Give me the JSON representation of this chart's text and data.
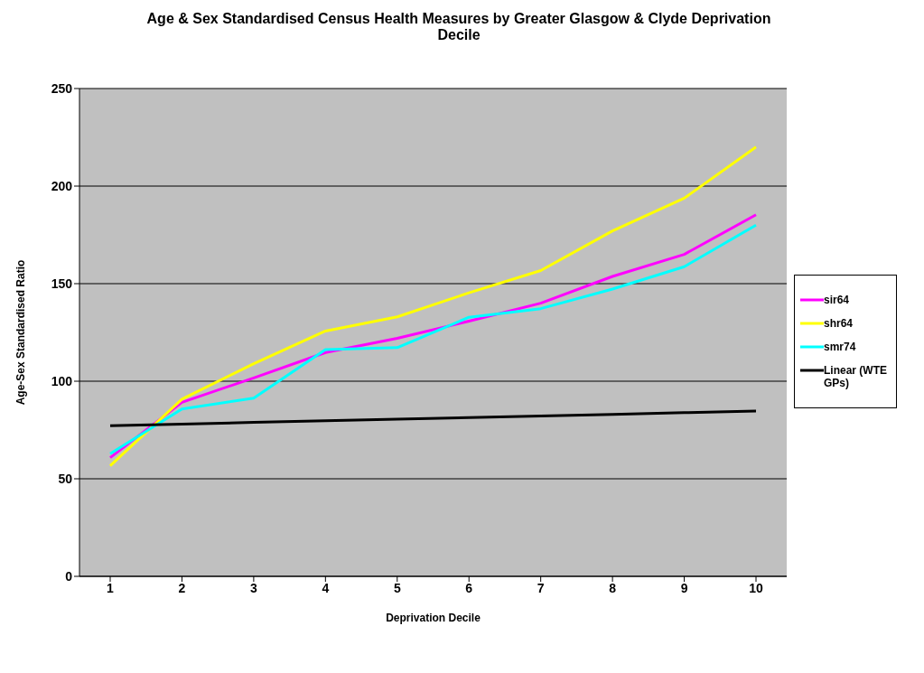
{
  "chart_data": {
    "type": "line",
    "title": "Age & Sex Standardised Census Health Measures by Greater Glasgow & Clyde Deprivation Decile",
    "xlabel": "Deprivation Decile",
    "ylabel": "Age-Sex Standardised Ratio",
    "categories": [
      "1",
      "2",
      "3",
      "4",
      "5",
      "6",
      "7",
      "8",
      "9",
      "10"
    ],
    "ylim": [
      0,
      250
    ],
    "yticks": [
      0,
      50,
      100,
      150,
      200,
      250
    ],
    "grid": "y",
    "legend": "right",
    "marker": "none",
    "line_style": "solid",
    "series": [
      {
        "name": "sir64",
        "color": "#ff00ff",
        "values": [
          60.8,
          89.2,
          101.7,
          114.7,
          122,
          130.8,
          140,
          153.7,
          165,
          185.3
        ]
      },
      {
        "name": "shr64",
        "color": "#ffff00",
        "values": [
          56.7,
          90.8,
          109,
          125.7,
          133,
          145.3,
          156.7,
          177,
          193.8,
          220
        ]
      },
      {
        "name": "smr74",
        "color": "#00ffff",
        "values": [
          62.8,
          85.8,
          91.3,
          116.2,
          117.2,
          132.8,
          137.2,
          147.2,
          158.7,
          180
        ]
      },
      {
        "name": "Linear (WTE GPs)",
        "color": "#000000",
        "values": [
          77.2,
          78,
          78.9,
          79.7,
          80.5,
          81.4,
          82.2,
          83,
          83.9,
          84.7
        ]
      }
    ]
  }
}
